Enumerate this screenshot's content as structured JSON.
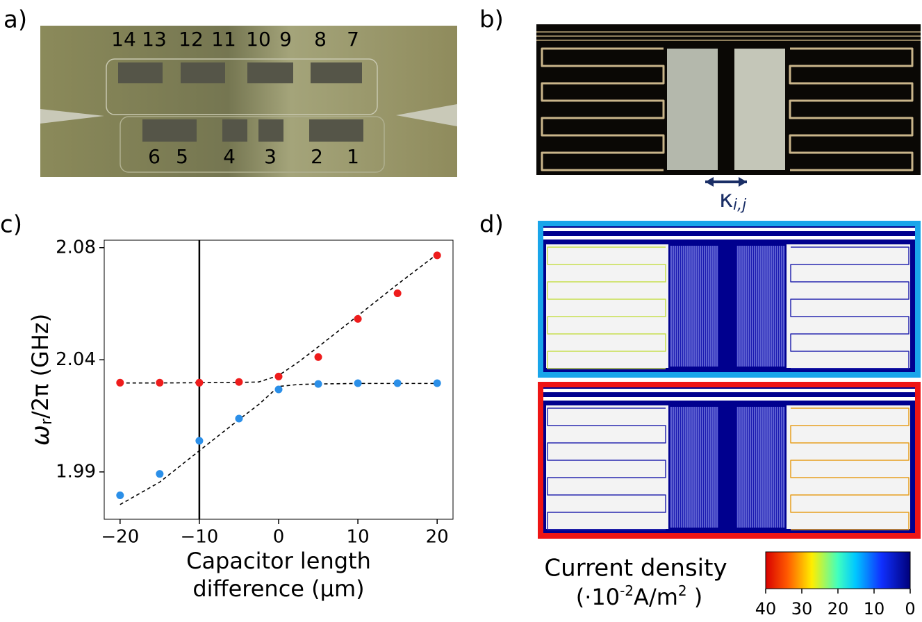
{
  "panel_labels": [
    "a)",
    "b)",
    "c)",
    "d)"
  ],
  "photo_a": {
    "top_labels": [
      "14",
      "13",
      "12",
      "11",
      "10",
      "9",
      "8",
      "7"
    ],
    "bottom_labels": [
      "6",
      "5",
      "4",
      "3",
      "2",
      "1"
    ]
  },
  "photo_b": {
    "coupling_label": [
      "κ",
      "i,j"
    ]
  },
  "chart_data": {
    "type": "scatter",
    "xlabel": [
      "Capacitor length",
      "difference (μm)"
    ],
    "ylabel": [
      "ω",
      "r",
      "/2π (GHz)"
    ],
    "xlim": [
      -22,
      22
    ],
    "ylim": [
      1.971,
      2.083
    ],
    "xticks": [
      {
        "value": -20,
        "label": "−20"
      },
      {
        "value": -10,
        "label": "−10"
      },
      0,
      10,
      20
    ],
    "yticks": [
      1.99,
      {
        "value": 2.035,
        "label": "2.04"
      },
      2.08
    ],
    "vline": -10,
    "series": [
      {
        "color": "#ee1c1c",
        "x": [
          -20,
          -15,
          -10,
          -5,
          0,
          5,
          10,
          15,
          20
        ],
        "values": [
          2.0258,
          2.0258,
          2.0258,
          2.0261,
          2.0283,
          2.0361,
          2.0514,
          2.0617,
          2.0769
        ]
      },
      {
        "color": "#2b8fe8",
        "x": [
          -20,
          -15,
          -10,
          -5,
          0,
          5,
          10,
          15,
          20
        ],
        "values": [
          1.9806,
          1.9892,
          2.0025,
          2.0114,
          2.0231,
          2.0253,
          2.0256,
          2.0256,
          2.0256
        ]
      }
    ],
    "fits": [
      {
        "color": "#000000",
        "linestyle": "dashed",
        "x": [
          -20,
          -15,
          -10,
          -5,
          -2.5,
          0,
          2.5,
          5,
          10,
          15,
          20
        ],
        "values": [
          2.0257,
          2.0257,
          2.0258,
          2.0259,
          2.0261,
          2.0287,
          2.0341,
          2.0402,
          2.0527,
          2.0653,
          2.0774
        ]
      },
      {
        "color": "#000000",
        "linestyle": "dashed",
        "x": [
          -20,
          -15,
          -10,
          -5,
          -2.5,
          0,
          2.5,
          5,
          10,
          15,
          20
        ],
        "values": [
          1.9769,
          1.9859,
          1.9985,
          2.011,
          2.0171,
          2.0243,
          2.0251,
          2.0253,
          2.0255,
          2.0255,
          2.0255
        ]
      }
    ]
  },
  "simulation_d": {
    "colorbar": {
      "title": "Current density",
      "unit": [
        "(·10",
        "-2",
        "A/m",
        "2",
        " )"
      ],
      "lim": [
        40,
        0
      ],
      "ticks": [
        40,
        30,
        20,
        10,
        0
      ]
    }
  }
}
